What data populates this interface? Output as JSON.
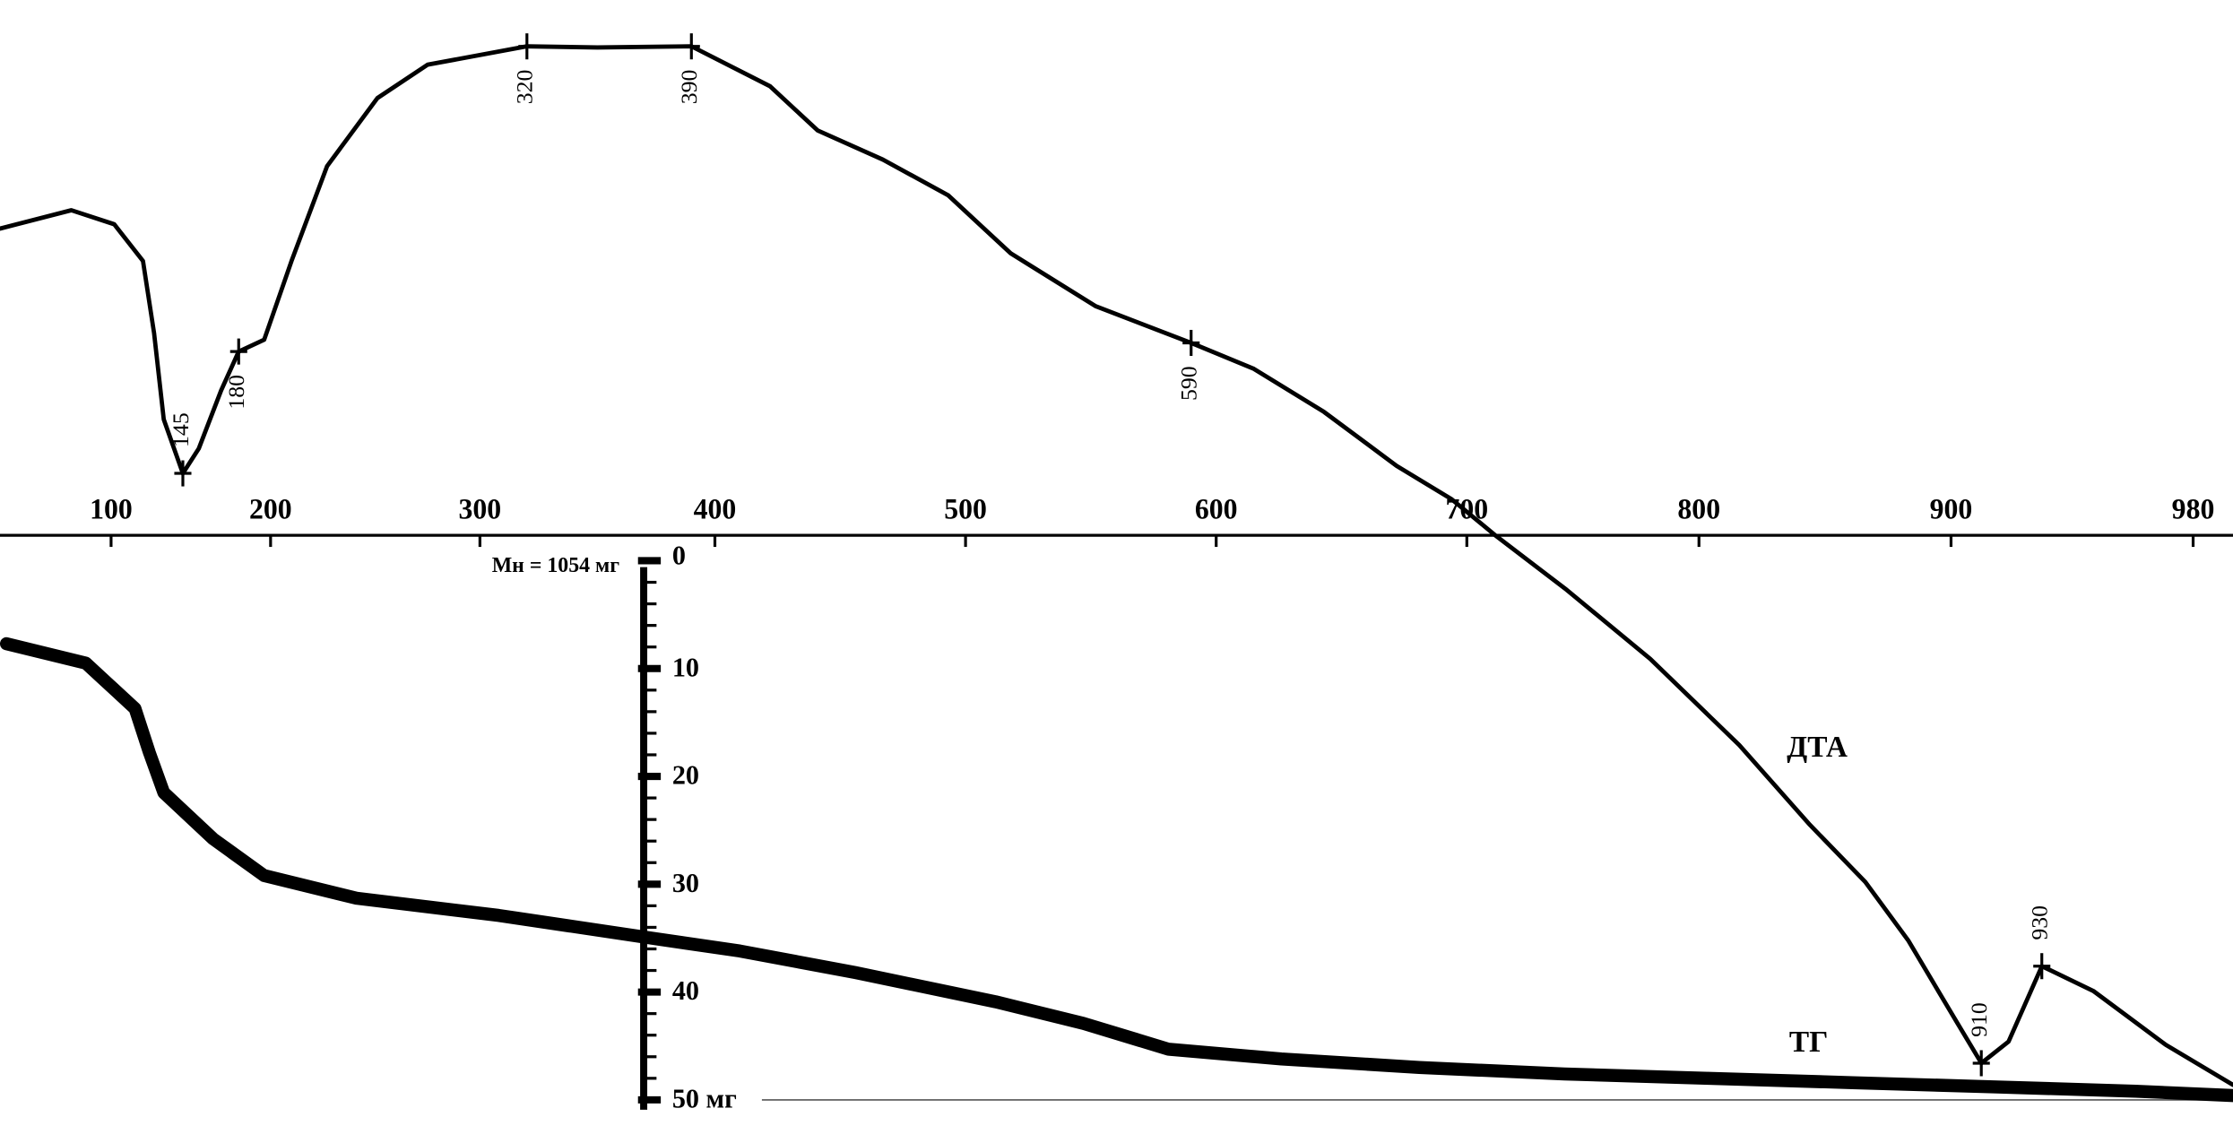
{
  "chart_data": {
    "type": "line",
    "xlim": [
      30,
      995
    ],
    "xticks": [
      100,
      200,
      300,
      400,
      500,
      600,
      700,
      800,
      900,
      980
    ],
    "ylim": [
      54,
      -52
    ],
    "yticks": [
      0,
      10,
      20,
      30,
      40,
      {
        "value": 50,
        "label": "50 мг"
      }
    ],
    "minor_yticks": [
      2,
      4,
      6,
      8,
      12,
      14,
      16,
      18,
      22,
      24,
      26,
      28,
      32,
      34,
      36,
      38,
      42,
      44,
      46,
      48
    ],
    "ylabel": "Мн = 1054 мг",
    "series": [
      {
        "name": "ДТА",
        "color": "#000000",
        "x": [
          30,
          75,
          102,
          120,
          127,
          133,
          145,
          155,
          169,
          180,
          196,
          210,
          227,
          251,
          275,
          320,
          350,
          390,
          422,
          441,
          467,
          493,
          518,
          552,
          590,
          615,
          643,
          672,
          694,
          712,
          743,
          779,
          816,
          844,
          866,
          883,
          900,
          910,
          919,
          930,
          947,
          971,
          995
        ],
        "values": [
          -30.8,
          -32.5,
          -31.2,
          -27.8,
          -21.1,
          -13.1,
          -8.1,
          -10.4,
          -15.8,
          -19.4,
          -20.5,
          -27.8,
          -36.6,
          -42.9,
          -46.0,
          -47.7,
          -47.6,
          -47.7,
          -44.0,
          -39.9,
          -37.2,
          -33.9,
          -28.5,
          -23.6,
          -20.2,
          -17.8,
          -13.8,
          -8.8,
          -5.7,
          -2.4,
          2.7,
          9.1,
          17.1,
          24.5,
          29.8,
          35.2,
          41.9,
          46.6,
          44.6,
          37.6,
          39.9,
          44.9,
          48.6
        ]
      },
      {
        "name": "ТГ",
        "color": "#000000",
        "x": [
          34,
          84,
          115,
          124,
          133,
          164,
          196,
          241,
          308,
          370,
          410,
          456,
          512,
          547,
          581,
          626,
          681,
          742,
          804,
          861,
          914,
          961,
          995
        ],
        "values": [
          7.7,
          9.5,
          13.7,
          17.8,
          21.5,
          25.8,
          29.2,
          31.3,
          32.9,
          34.9,
          36.2,
          38.2,
          40.9,
          42.9,
          45.3,
          46.2,
          47.0,
          47.6,
          48.0,
          48.4,
          48.8,
          49.2,
          49.6
        ]
      }
    ],
    "marked_points": [
      {
        "value": 145,
        "side": "above"
      },
      {
        "value": 180,
        "side": "below"
      },
      {
        "value": 320,
        "side": "below"
      },
      {
        "value": 390,
        "side": "below"
      },
      {
        "value": 590,
        "side": "below"
      },
      {
        "value": 910,
        "side": "above"
      },
      {
        "value": 930,
        "side": "above"
      }
    ]
  }
}
